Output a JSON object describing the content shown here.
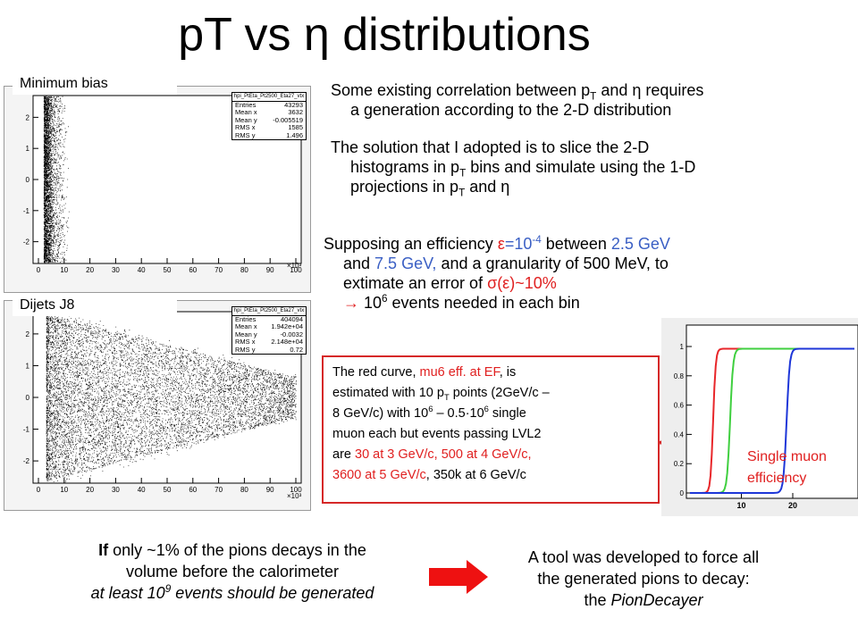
{
  "title": {
    "pre": "pT vs ",
    "eta": "η",
    "post": " distributions"
  },
  "plot1": {
    "label": "Minimum bias",
    "stats": {
      "name": "hpi_PtEta_Pt2500_Eta27_vtx",
      "entries": "43293",
      "mean_x": "3632",
      "mean_y": "-0.005519",
      "rms_x": "1585",
      "rms_y": "1.496"
    },
    "ticks_y": [
      "2",
      "1",
      "0",
      "-1",
      "-2"
    ],
    "ticks_x": [
      "0",
      "10",
      "20",
      "30",
      "40",
      "50",
      "60",
      "70",
      "80",
      "90",
      "100"
    ],
    "x_multiplier": "×10³"
  },
  "plot2": {
    "label": "Dijets J8",
    "stats": {
      "name": "hpi_PtEta_Pt2500_Eta27_vtx",
      "entries": "404094",
      "mean_x": "1.942e+04",
      "mean_y": "-0.0032",
      "rms_x": "2.148e+04",
      "rms_y": "0.72"
    },
    "ticks_y": [
      "2",
      "1",
      "0",
      "-1",
      "-2"
    ],
    "ticks_x": [
      "0",
      "10",
      "20",
      "30",
      "40",
      "50",
      "60",
      "70",
      "80",
      "90",
      "100"
    ],
    "x_multiplier": "×10³"
  },
  "stat_labels": {
    "entries": "Entries",
    "mean_x": "Mean x",
    "mean_y": "Mean y",
    "rms_x": "RMS x",
    "rms_y": "RMS y"
  },
  "para1": {
    "t1": "Some existing correlation between p",
    "sub": "T",
    "t2": " and ",
    "eta": "η",
    "t3": " requires",
    "t4": "a generation according to the 2-D distribution"
  },
  "para2": {
    "t1": "The solution that I adopted is to slice the 2-D",
    "t2": "histograms in p",
    "sub": "T",
    "t3": " bins and simulate using the 1-D",
    "t4": "projections in p",
    "sub2": "T",
    "t5": " and ",
    "eta": "η"
  },
  "para3": {
    "t1": "Supposing an efficiency ",
    "eps": "ε",
    "t2": "=10",
    "sup": "-4",
    "t3": " between ",
    "v1": "2.5 GeV",
    "t4": "and ",
    "v2": "7.5 GeV,",
    "t5": " and a granularity of 500 MeV, to",
    "t6": "extimate an error of ",
    "sig": "σ(ε)~10%",
    "arrow": "→",
    "t7": " 10",
    "sup2": "6",
    "t8": " events needed in each bin"
  },
  "redbox": {
    "t1": "The red curve, ",
    "r1": "mu6 eff. at EF",
    "t2": ", is",
    "t3": "estimated with 10 p",
    "sub": "T",
    "t4": " points (2GeV/c –",
    "t5": "8 GeV/c) with 10",
    "sup1": "6",
    "t6": " – 0.5·10",
    "sup2": "6",
    "t7": " single",
    "t8": "muon each but events passing LVL2",
    "t9": "are ",
    "r2": "30 at 3 GeV/c,  500 at 4 GeV/c,",
    "r3": "3600 at 5 GeV/c",
    "t10": ", 350k at 6 GeV/c"
  },
  "eff_plot": {
    "ticks_y": [
      "1",
      "0.8",
      "0.6",
      "0.4",
      "0.2",
      "0"
    ],
    "ticks_x": [
      "10",
      "20"
    ],
    "label_line1": "Single muon",
    "label_line2": "efficiency",
    "colors": {
      "red": "#e8262a",
      "green": "#3fcf3f",
      "blue": "#1d36d8"
    }
  },
  "bottom_left": {
    "b1": "If",
    "t1": " only ~1% of the pions decays in the",
    "t2": "volume before the calorimeter",
    "i1": "at least 10",
    "isup": "9",
    "i2": " events should be generated"
  },
  "bottom_right": {
    "t1": "A tool was developed to force all",
    "t2": "the generated pions to decay:",
    "t3": "the ",
    "i1": "PionDecayer"
  }
}
